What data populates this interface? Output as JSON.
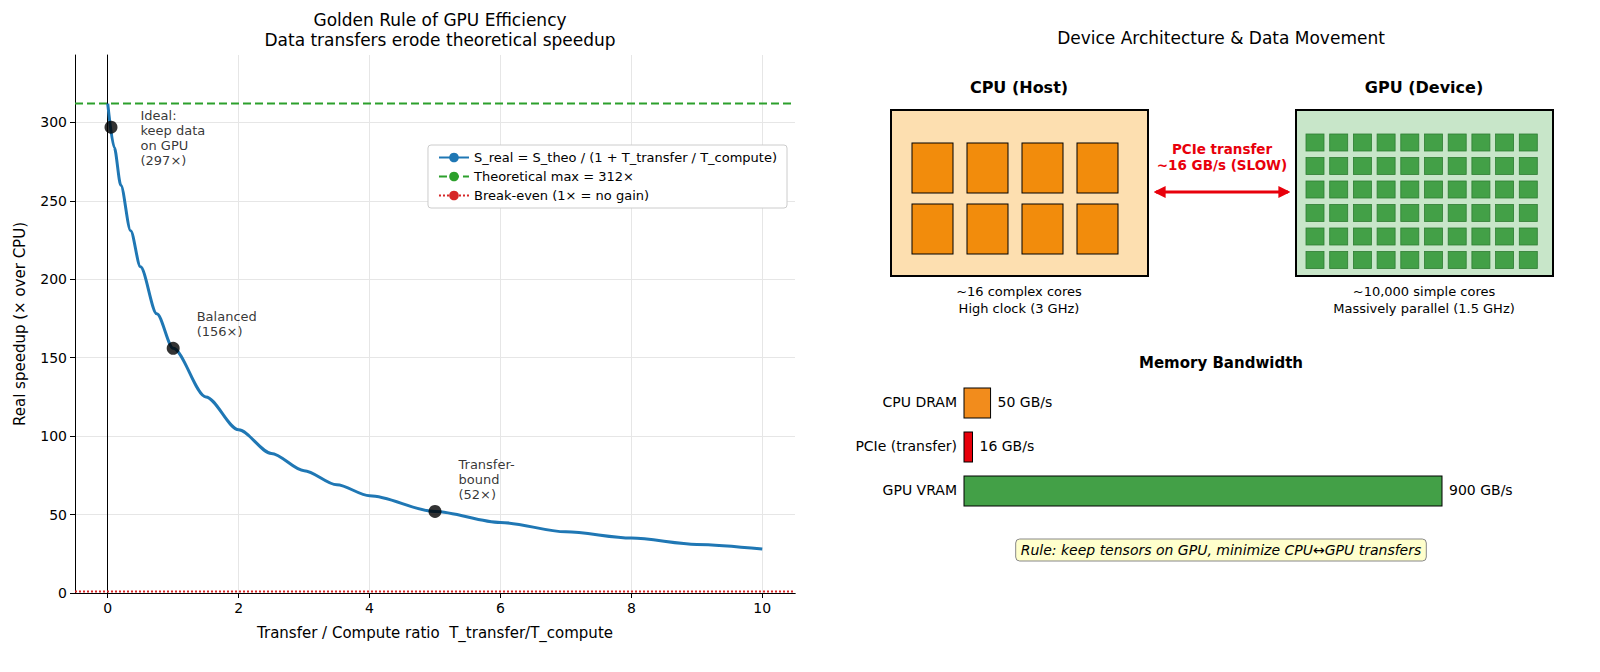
{
  "chart_data": {
    "type": "line",
    "title": "Golden Rule of GPU Efficiency",
    "subtitle": "Data transfers erode theoretical speedup",
    "x_label": "Transfer / Compute ratio  T_transfer/T_compute",
    "y_label": "Real speedup (× over CPU)",
    "xlim": [
      -0.5,
      10.5
    ],
    "xticks": [
      0,
      2,
      4,
      6,
      8,
      10
    ],
    "ylim": [
      0,
      343
    ],
    "yticks": [
      0,
      50,
      100,
      150,
      200,
      250,
      300
    ],
    "grid": true,
    "legend": "upper right",
    "series": [
      {
        "name": "S_real = S_theo / (1 + T_transfer / T_compute)",
        "color": "#1f77b4",
        "line_style": "solid",
        "x": [
          0,
          0.1,
          0.2,
          0.35,
          0.5,
          0.75,
          1,
          1.5,
          2,
          2.5,
          3,
          3.5,
          4,
          5,
          6,
          7,
          8,
          9,
          10
        ],
        "values": [
          312,
          284,
          260,
          231,
          208,
          178,
          156,
          125,
          104,
          89,
          78,
          69,
          62,
          52,
          45,
          39,
          35,
          31,
          28
        ]
      },
      {
        "name": "Theoretical max = 312×",
        "color": "#2ca02c",
        "line_style": "dashed",
        "x": [
          -0.5,
          10.5
        ],
        "values": [
          312,
          312
        ]
      },
      {
        "name": "Break-even (1× = no gain)",
        "color": "#d62728",
        "line_style": "dotted",
        "x": [
          -0.5,
          10.5
        ],
        "values": [
          1,
          1
        ]
      }
    ],
    "points": {
      "x": [
        0.05,
        1,
        5
      ],
      "values": [
        297,
        156,
        52
      ],
      "labels": [
        "Ideal:\nkeep data\non GPU\n(297×)",
        "Balanced\n(156×)",
        "Transfer-\nbound\n(52×)"
      ],
      "color": "#000000",
      "marker": "circle"
    }
  },
  "diagram": {
    "title": "Device Architecture & Data Movement",
    "devices": [
      {
        "name": "CPU (Host)",
        "lines": [
          "~16 complex cores",
          "High clock (3 GHz)"
        ]
      },
      {
        "name": "GPU (Device)",
        "lines": [
          "~10,000 simple cores",
          "Massively parallel (1.5 GHz)"
        ]
      }
    ],
    "link": {
      "lines": [
        "PCIe transfer",
        "~16 GB/s (SLOW)"
      ]
    },
    "bandwidth": {
      "title": "Memory Bandwidth",
      "categories": [
        "CPU DRAM",
        "PCIe (transfer)",
        "GPU VRAM"
      ],
      "values": [
        50,
        16,
        900
      ],
      "value_labels": [
        "50 GB/s",
        "16 GB/s",
        "900 GB/s"
      ],
      "colors": [
        "#f28c1c",
        "#e8000b",
        "#43a047"
      ]
    },
    "rule": "Rule: keep tensors on GPU, minimize CPU↔GPU transfers"
  }
}
